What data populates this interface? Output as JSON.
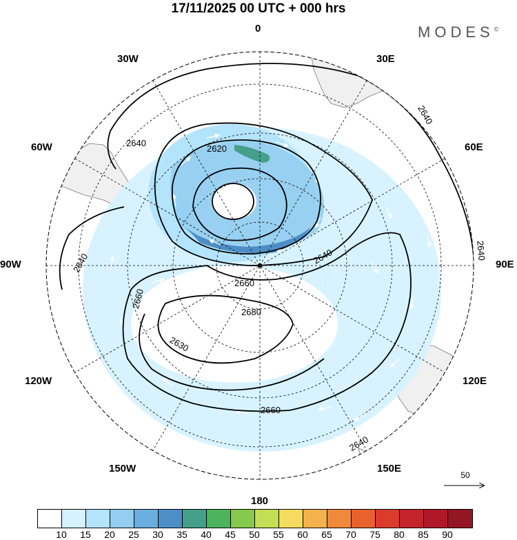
{
  "header": {
    "title": "17/11/2025  00 UTC  + 000 hrs",
    "brand": "MODES",
    "brand_mark": "©"
  },
  "map": {
    "longitude_labels": {
      "lon_0": "0",
      "lon_30e": "30E",
      "lon_60e": "60E",
      "lon_90e": "90E",
      "lon_120e": "120E",
      "lon_150e": "150E",
      "lon_180": "180",
      "lon_150w": "150W",
      "lon_120w": "120W",
      "lon_90w": "90W",
      "lon_60w": "60W",
      "lon_30w": "30W"
    },
    "contour_labels": [
      "2620",
      "2640",
      "2640",
      "2640",
      "2640",
      "2640",
      "2660",
      "2660",
      "2660",
      "2680",
      "2630",
      "2640"
    ],
    "colors": {
      "land": "#f0f0f0",
      "coast": "#777777",
      "grid": "#000000",
      "contour": "#000000",
      "arrow": "#ffffff"
    }
  },
  "vector_reference": {
    "value": "50"
  },
  "colorbar": {
    "colors": [
      "#ffffff",
      "#d6f2ff",
      "#b4e4fb",
      "#94cdf0",
      "#6aaee0",
      "#4d8ec7",
      "#44a08a",
      "#4cb45a",
      "#86c94c",
      "#c3de54",
      "#f6dc5e",
      "#f4b24c",
      "#ef8a3c",
      "#e8612f",
      "#da3b2c",
      "#c6242c",
      "#b0182a",
      "#931624"
    ],
    "tick_labels": [
      "10",
      "15",
      "20",
      "25",
      "30",
      "35",
      "40",
      "45",
      "50",
      "55",
      "60",
      "65",
      "70",
      "75",
      "80",
      "85",
      "90"
    ]
  }
}
